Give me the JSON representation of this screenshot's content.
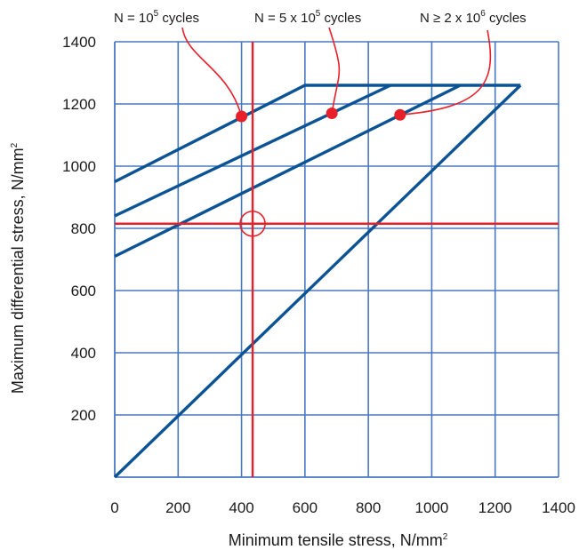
{
  "chart_data": {
    "type": "line",
    "xlabel": "Minimum tensile stress, N/mm",
    "xlabel_exp": "2",
    "ylabel": "Maximum differential stress, N/mm",
    "ylabel_exp": "2",
    "xlim": [
      0,
      1400
    ],
    "ylim": [
      0,
      1400
    ],
    "xticks": [
      0,
      200,
      400,
      600,
      800,
      1000,
      1200,
      1400
    ],
    "yticks": [
      200,
      400,
      600,
      800,
      1000,
      1200,
      1400
    ],
    "x_tick_labels": [
      "0",
      "200",
      "400",
      "600",
      "800",
      "1000",
      "1200",
      "1400"
    ],
    "y_tick_labels": [
      "200",
      "400",
      "600",
      "800",
      "1000",
      "1200",
      "1400"
    ],
    "grid": true,
    "colors": {
      "grid": "#4a78c0",
      "series": "#0b5394",
      "marker": "#e8202a"
    },
    "series": [
      {
        "x": [
          0,
          1280
        ],
        "y": [
          0,
          1260
        ]
      },
      {
        "x": [
          0,
          600,
          1280
        ],
        "y": [
          950,
          1260,
          1260
        ]
      },
      {
        "x": [
          0,
          870
        ],
        "y": [
          840,
          1260
        ]
      },
      {
        "x": [
          0,
          1090
        ],
        "y": [
          710,
          1260
        ]
      }
    ],
    "reference_lines": {
      "x": 435,
      "y": 815
    },
    "reference_circle": {
      "x": 435,
      "y": 815
    },
    "annotations": [
      {
        "label": "N = 10",
        "exp": "5",
        "suffix": " cycles",
        "point": {
          "x": 400,
          "y": 1160
        }
      },
      {
        "label": "N = 5 x 10",
        "exp": "5",
        "suffix": " cycles",
        "point": {
          "x": 685,
          "y": 1170
        }
      },
      {
        "label": "N ≥ 2 x 10",
        "exp": "6",
        "suffix": " cycles",
        "point": {
          "x": 900,
          "y": 1165
        }
      }
    ]
  }
}
